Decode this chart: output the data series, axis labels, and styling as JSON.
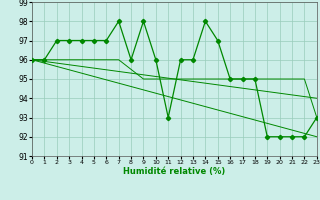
{
  "xlabel": "Humidité relative (%)",
  "background_color": "#cceee8",
  "grid_color": "#99ccbb",
  "line_color": "#008800",
  "xmin": 0,
  "xmax": 23,
  "ymin": 91,
  "ymax": 99,
  "xticks": [
    0,
    1,
    2,
    3,
    4,
    5,
    6,
    7,
    8,
    9,
    10,
    11,
    12,
    13,
    14,
    15,
    16,
    17,
    18,
    19,
    20,
    21,
    22,
    23
  ],
  "yticks": [
    91,
    92,
    93,
    94,
    95,
    96,
    97,
    98,
    99
  ],
  "series": [
    {
      "x": [
        0,
        1,
        2,
        3,
        4,
        5,
        6,
        7,
        8,
        9,
        10,
        11,
        12,
        13,
        14,
        15,
        16,
        17,
        18,
        19,
        20,
        21,
        22,
        23
      ],
      "y": [
        96,
        96,
        97,
        97,
        97,
        97,
        97,
        98,
        96,
        98,
        96,
        93,
        96,
        96,
        98,
        97,
        95,
        95,
        95,
        92,
        92,
        92,
        92,
        93
      ],
      "marker": true
    },
    {
      "x": [
        0,
        1,
        2,
        3,
        4,
        5,
        6,
        7,
        8,
        9,
        10,
        11,
        12,
        13,
        14,
        15,
        16,
        17,
        18,
        19,
        20,
        21,
        22,
        23
      ],
      "y": [
        96,
        96,
        96,
        96,
        96,
        96,
        96,
        96,
        95.5,
        95,
        95,
        95,
        95,
        95,
        95,
        95,
        95,
        95,
        95,
        95,
        95,
        95,
        95,
        93
      ],
      "marker": false
    },
    {
      "x": [
        0,
        23
      ],
      "y": [
        96,
        92
      ],
      "marker": false
    },
    {
      "x": [
        0,
        23
      ],
      "y": [
        96,
        94
      ],
      "marker": false
    }
  ]
}
